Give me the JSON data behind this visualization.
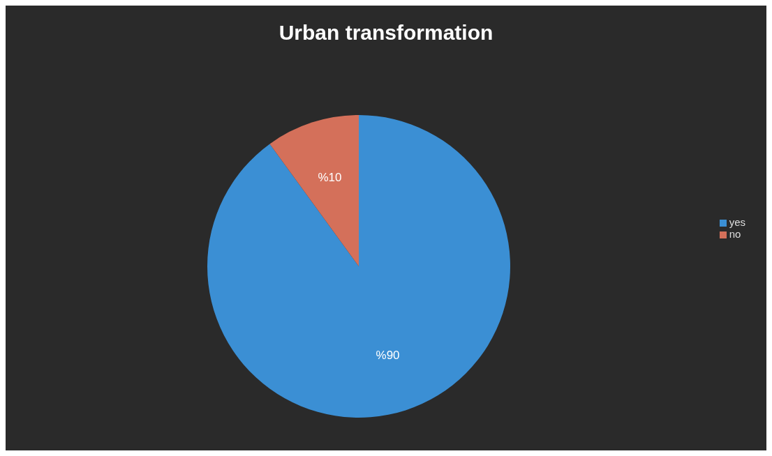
{
  "chart_data": {
    "type": "pie",
    "title": "Urban transformation",
    "categories": [
      "yes",
      "no"
    ],
    "values": [
      90,
      10
    ],
    "colors": [
      "#3b8fd4",
      "#d4705a"
    ],
    "value_labels": [
      "%90",
      "%10"
    ],
    "legend": "right"
  }
}
